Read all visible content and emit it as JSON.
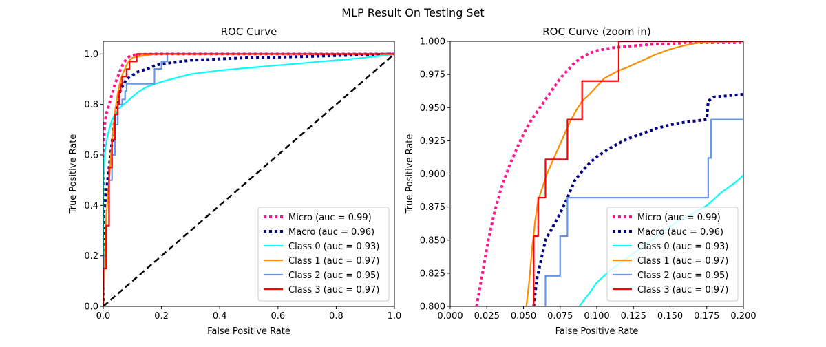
{
  "figure": {
    "title": "MLP Result On Testing Set"
  },
  "chart_data": [
    {
      "type": "line",
      "title": "ROC Curve",
      "xlabel": "False Positive Rate",
      "ylabel": "True Positive Rate",
      "xlim": [
        0.0,
        1.0
      ],
      "ylim": [
        0.0,
        1.05
      ],
      "xticks": [
        "0.0",
        "0.2",
        "0.4",
        "0.6",
        "0.8",
        "1.0"
      ],
      "yticks": [
        "0.0",
        "0.2",
        "0.4",
        "0.6",
        "0.8",
        "1.0"
      ],
      "legend_position": "lower-right",
      "grid": false,
      "series": [
        {
          "name": "Micro (auc = 0.99)",
          "color": "#ff1493",
          "style": "dotted",
          "x": [
            0.0,
            0.0,
            0.005,
            0.01,
            0.02,
            0.03,
            0.04,
            0.05,
            0.06,
            0.07,
            0.08,
            0.09,
            0.1,
            0.12,
            0.15,
            0.2,
            0.3,
            0.5,
            1.0
          ],
          "y": [
            0.0,
            0.6,
            0.72,
            0.76,
            0.8,
            0.84,
            0.88,
            0.91,
            0.94,
            0.965,
            0.98,
            0.99,
            0.995,
            0.998,
            0.999,
            1.0,
            1.0,
            1.0,
            1.0
          ]
        },
        {
          "name": "Macro (auc = 0.96)",
          "color": "#000080",
          "style": "dotted",
          "x": [
            0.0,
            0.0,
            0.01,
            0.02,
            0.03,
            0.04,
            0.05,
            0.06,
            0.07,
            0.08,
            0.1,
            0.12,
            0.15,
            0.18,
            0.2,
            0.3,
            0.5,
            0.7,
            1.0
          ],
          "y": [
            0.0,
            0.35,
            0.45,
            0.55,
            0.65,
            0.75,
            0.82,
            0.86,
            0.88,
            0.9,
            0.915,
            0.93,
            0.94,
            0.955,
            0.96,
            0.975,
            0.985,
            0.99,
            1.0
          ]
        },
        {
          "name": "Class 0 (auc = 0.93)",
          "color": "#00ffff",
          "style": "solid",
          "x": [
            0.0,
            0.0,
            0.005,
            0.01,
            0.02,
            0.03,
            0.05,
            0.08,
            0.1,
            0.12,
            0.15,
            0.2,
            0.25,
            0.3,
            0.4,
            0.5,
            0.6,
            0.7,
            0.8,
            0.9,
            1.0
          ],
          "y": [
            0.0,
            0.5,
            0.6,
            0.65,
            0.7,
            0.74,
            0.78,
            0.81,
            0.83,
            0.85,
            0.87,
            0.89,
            0.905,
            0.92,
            0.935,
            0.945,
            0.955,
            0.965,
            0.975,
            0.985,
            1.0
          ]
        },
        {
          "name": "Class 1 (auc = 0.97)",
          "color": "#ff8c00",
          "style": "solid",
          "x": [
            0.0,
            0.005,
            0.01,
            0.02,
            0.03,
            0.04,
            0.05,
            0.06,
            0.07,
            0.08,
            0.09,
            0.1,
            0.12,
            0.15,
            0.18,
            0.2,
            1.0
          ],
          "y": [
            0.0,
            0.2,
            0.35,
            0.5,
            0.65,
            0.77,
            0.845,
            0.9,
            0.93,
            0.955,
            0.975,
            0.985,
            0.99,
            0.995,
            1.0,
            1.0,
            1.0
          ]
        },
        {
          "name": "Class 2 (auc = 0.95)",
          "color": "#6495ed",
          "style": "solid",
          "x": [
            0.0,
            0.0,
            0.01,
            0.01,
            0.02,
            0.02,
            0.03,
            0.03,
            0.04,
            0.04,
            0.05,
            0.05,
            0.065,
            0.065,
            0.075,
            0.075,
            0.08,
            0.08,
            0.176,
            0.176,
            0.2,
            0.2,
            0.22,
            0.22,
            1.0
          ],
          "y": [
            0.0,
            0.2,
            0.2,
            0.32,
            0.32,
            0.5,
            0.5,
            0.6,
            0.6,
            0.72,
            0.72,
            0.8,
            0.8,
            0.82,
            0.82,
            0.853,
            0.853,
            0.882,
            0.882,
            0.941,
            0.941,
            0.97,
            0.97,
            1.0,
            1.0
          ]
        },
        {
          "name": "Class 3 (auc = 0.97)",
          "color": "#ff0000",
          "style": "solid",
          "x": [
            0.0,
            0.0,
            0.01,
            0.01,
            0.02,
            0.02,
            0.03,
            0.03,
            0.04,
            0.04,
            0.05,
            0.05,
            0.055,
            0.055,
            0.06,
            0.06,
            0.065,
            0.065,
            0.08,
            0.08,
            0.09,
            0.09,
            0.115,
            0.115,
            1.0
          ],
          "y": [
            0.0,
            0.15,
            0.15,
            0.32,
            0.32,
            0.55,
            0.55,
            0.66,
            0.66,
            0.76,
            0.76,
            0.8,
            0.8,
            0.85,
            0.85,
            0.88,
            0.88,
            0.91,
            0.91,
            0.94,
            0.94,
            0.97,
            0.97,
            1.0,
            1.0
          ]
        },
        {
          "name": "",
          "color": "#000000",
          "style": "dashed",
          "legend": false,
          "x": [
            0.0,
            1.0
          ],
          "y": [
            0.0,
            1.0
          ]
        }
      ]
    },
    {
      "type": "line",
      "title": "ROC Curve (zoom in)",
      "xlabel": "False Positive Rate",
      "ylabel": "True Positive Rate",
      "xlim": [
        0.0,
        0.2
      ],
      "ylim": [
        0.8,
        1.0
      ],
      "xticks": [
        "0.000",
        "0.025",
        "0.050",
        "0.075",
        "0.100",
        "0.125",
        "0.150",
        "0.175",
        "0.200"
      ],
      "yticks": [
        "0.800",
        "0.825",
        "0.850",
        "0.875",
        "0.900",
        "0.925",
        "0.950",
        "0.975",
        "1.000"
      ],
      "legend_position": "lower-right",
      "grid": false,
      "series": [
        {
          "name": "Micro (auc = 0.99)",
          "color": "#ff1493",
          "style": "dotted",
          "x": [
            0.018,
            0.022,
            0.026,
            0.03,
            0.035,
            0.04,
            0.045,
            0.05,
            0.055,
            0.06,
            0.065,
            0.07,
            0.075,
            0.08,
            0.085,
            0.09,
            0.095,
            0.1,
            0.11,
            0.12,
            0.13,
            0.14,
            0.15,
            0.16,
            0.175,
            0.2
          ],
          "y": [
            0.8,
            0.825,
            0.85,
            0.87,
            0.89,
            0.905,
            0.918,
            0.93,
            0.94,
            0.948,
            0.956,
            0.964,
            0.972,
            0.978,
            0.984,
            0.988,
            0.991,
            0.993,
            0.995,
            0.996,
            0.997,
            0.998,
            0.998,
            0.999,
            0.999,
            0.999
          ]
        },
        {
          "name": "Macro (auc = 0.96)",
          "color": "#000080",
          "style": "dotted",
          "x": [
            0.057,
            0.059,
            0.062,
            0.065,
            0.07,
            0.075,
            0.08,
            0.085,
            0.09,
            0.095,
            0.1,
            0.11,
            0.12,
            0.13,
            0.14,
            0.15,
            0.16,
            0.175,
            0.176,
            0.18,
            0.2
          ],
          "y": [
            0.8,
            0.82,
            0.835,
            0.85,
            0.86,
            0.87,
            0.882,
            0.895,
            0.902,
            0.908,
            0.913,
            0.92,
            0.926,
            0.93,
            0.934,
            0.937,
            0.939,
            0.941,
            0.955,
            0.958,
            0.96
          ]
        },
        {
          "name": "Class 0 (auc = 0.93)",
          "color": "#00ffff",
          "style": "solid",
          "x": [
            0.088,
            0.09,
            0.095,
            0.1,
            0.105,
            0.11,
            0.115,
            0.12,
            0.125,
            0.13,
            0.135,
            0.14,
            0.145,
            0.15,
            0.155,
            0.16,
            0.165,
            0.17,
            0.175,
            0.18,
            0.185,
            0.19,
            0.195,
            0.2
          ],
          "y": [
            0.8,
            0.803,
            0.81,
            0.818,
            0.823,
            0.828,
            0.832,
            0.836,
            0.84,
            0.844,
            0.848,
            0.852,
            0.856,
            0.86,
            0.864,
            0.867,
            0.87,
            0.873,
            0.876,
            0.881,
            0.886,
            0.89,
            0.894,
            0.899
          ]
        },
        {
          "name": "Class 1 (auc = 0.97)",
          "color": "#ff8c00",
          "style": "solid",
          "x": [
            0.052,
            0.054,
            0.056,
            0.058,
            0.06,
            0.063,
            0.066,
            0.07,
            0.074,
            0.078,
            0.082,
            0.086,
            0.09,
            0.095,
            0.1,
            0.105,
            0.11,
            0.115,
            0.12,
            0.13,
            0.14,
            0.15,
            0.16,
            0.17,
            0.2
          ],
          "y": [
            0.8,
            0.82,
            0.845,
            0.865,
            0.88,
            0.89,
            0.9,
            0.91,
            0.92,
            0.93,
            0.94,
            0.948,
            0.955,
            0.96,
            0.966,
            0.972,
            0.975,
            0.978,
            0.98,
            0.985,
            0.99,
            0.994,
            0.997,
            0.999,
            1.0
          ]
        },
        {
          "name": "Class 2 (auc = 0.95)",
          "color": "#6495ed",
          "style": "solid",
          "x": [
            0.065,
            0.065,
            0.075,
            0.075,
            0.08,
            0.08,
            0.176,
            0.176,
            0.178,
            0.178,
            0.2
          ],
          "y": [
            0.8,
            0.823,
            0.823,
            0.853,
            0.853,
            0.882,
            0.882,
            0.912,
            0.912,
            0.941,
            0.941
          ]
        },
        {
          "name": "Class 3 (auc = 0.97)",
          "color": "#ff0000",
          "style": "solid",
          "x": [
            0.057,
            0.057,
            0.06,
            0.06,
            0.065,
            0.065,
            0.08,
            0.08,
            0.09,
            0.09,
            0.115,
            0.115,
            0.2
          ],
          "y": [
            0.8,
            0.853,
            0.853,
            0.882,
            0.882,
            0.911,
            0.911,
            0.941,
            0.941,
            0.97,
            0.97,
            1.0,
            1.0
          ]
        }
      ]
    }
  ]
}
